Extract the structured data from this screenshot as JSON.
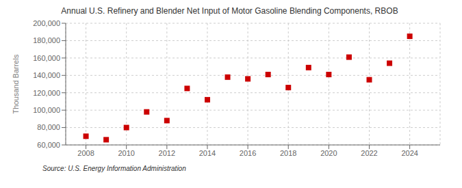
{
  "chart_data": {
    "type": "scatter",
    "title": "Annual U.S. Refinery and Blender Net Input of Motor Gasoline Blending Components, RBOB",
    "y_label": "Thousand Barrels",
    "annotations": [
      "Source: U.S. Energy Information Administration"
    ],
    "x": [
      2008,
      2009,
      2010,
      2011,
      2012,
      2013,
      2014,
      2015,
      2016,
      2017,
      2018,
      2019,
      2020,
      2021,
      2022,
      2023,
      2024
    ],
    "values": [
      70000,
      66000,
      80000,
      98000,
      88000,
      125000,
      112000,
      138000,
      136000,
      141000,
      126000,
      149000,
      141000,
      161000,
      135000,
      154000,
      185000
    ],
    "color": "#cc0000",
    "marker": "square",
    "xlim": [
      2007.0,
      2025.5
    ],
    "xticks": [
      2008,
      2010,
      2012,
      2014,
      2016,
      2018,
      2020,
      2022,
      2024
    ],
    "ylim": [
      60000,
      200000
    ],
    "yticks": [
      {
        "value": 60000,
        "label": "60,000"
      },
      {
        "value": 80000,
        "label": "80,000"
      },
      {
        "value": 100000,
        "label": "100,000"
      },
      {
        "value": 120000,
        "label": "120,000"
      },
      {
        "value": 140000,
        "label": "140,000"
      },
      {
        "value": 160000,
        "label": "160,000"
      },
      {
        "value": 180000,
        "label": "180,000"
      },
      {
        "value": 200000,
        "label": "200,000"
      }
    ],
    "grid": true
  }
}
